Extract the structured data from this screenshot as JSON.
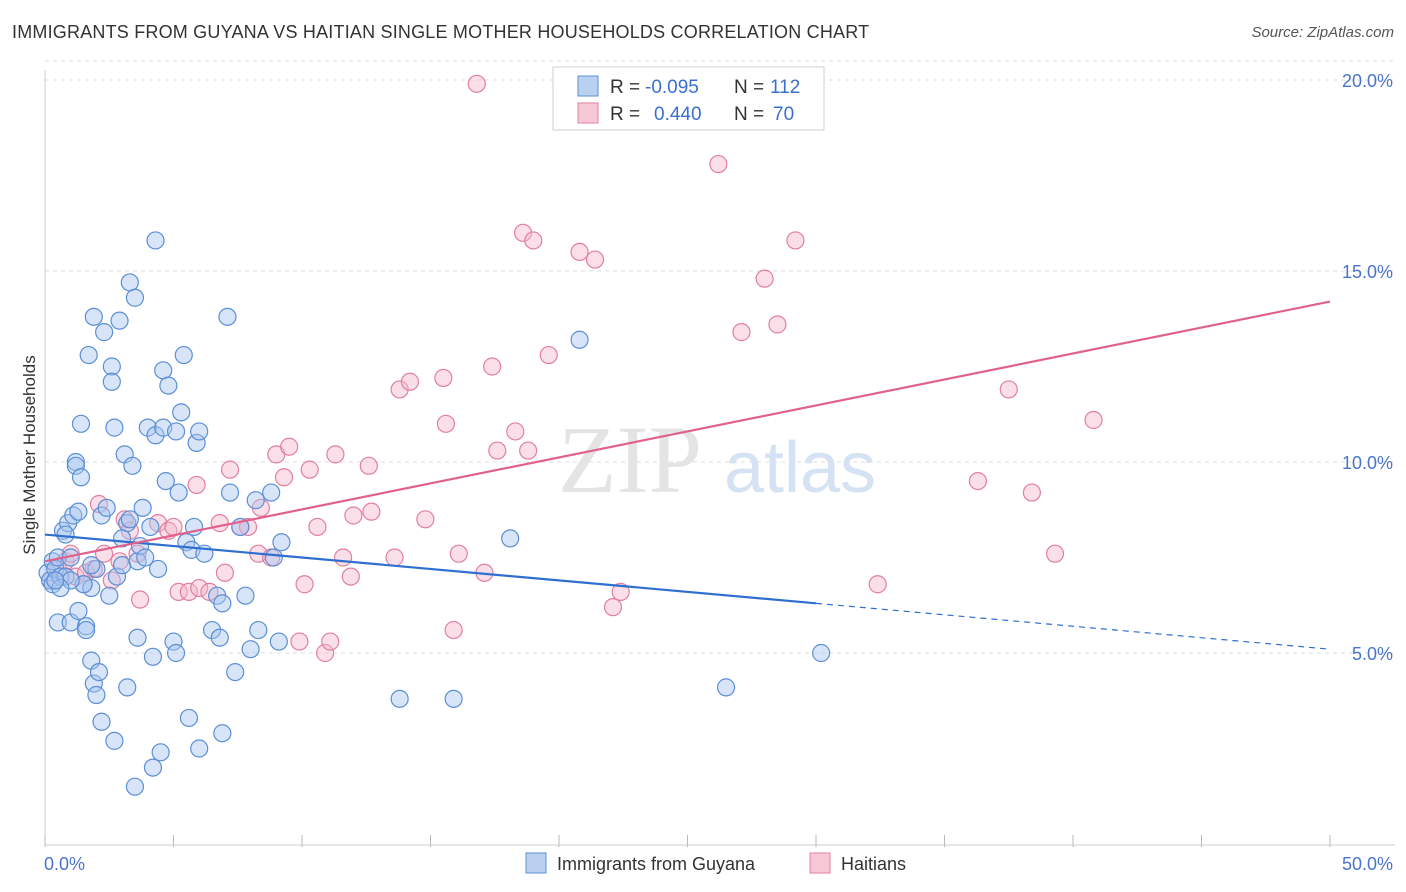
{
  "title": "IMMIGRANTS FROM GUYANA VS HAITIAN SINGLE MOTHER HOUSEHOLDS CORRELATION CHART",
  "source": "Source: ZipAtlas.com",
  "watermark": {
    "zip": "ZIP",
    "atlas": "atlas"
  },
  "legend": {
    "rows": [
      {
        "r_label": "R =",
        "r_value": "-0.095",
        "n_label": "N =",
        "n_value": "112"
      },
      {
        "r_label": "R =",
        "r_value": "0.440",
        "n_label": "N =",
        "n_value": "70"
      }
    ]
  },
  "bottom_legend": [
    "Immigrants from Guyana",
    "Haitians"
  ],
  "colors": {
    "blue_fill": "#a9c6ef",
    "blue_stroke": "#5b8fd6",
    "blue_line": "#2f6fd0",
    "pink_fill": "#f4b8cb",
    "pink_stroke": "#e27fa0",
    "pink_line": "#e0628c",
    "grid": "#dddddd",
    "tick_text": "#4a74c9"
  },
  "chart_data": {
    "type": "scatter",
    "title": "IMMIGRANTS FROM GUYANA VS HAITIAN SINGLE MOTHER HOUSEHOLDS CORRELATION CHART",
    "xlabel": "",
    "ylabel": "Single Mother Households",
    "xlim": [
      0,
      50
    ],
    "ylim": [
      0,
      20.5
    ],
    "x_tick_labels": [
      "0.0%",
      "50.0%"
    ],
    "y_ticks": [
      5,
      10,
      15,
      20
    ],
    "y_tick_labels": [
      "5.0%",
      "10.0%",
      "15.0%",
      "20.0%"
    ],
    "grid": true,
    "legend_position": "top-center",
    "series": [
      {
        "name": "Immigrants from Guyana",
        "r": -0.095,
        "n": 112,
        "trend": {
          "x": [
            0,
            30
          ],
          "y": [
            8.1,
            6.3
          ]
        },
        "trend_dashed": {
          "x": [
            30,
            50
          ],
          "y": [
            6.3,
            5.1
          ]
        },
        "points": [
          [
            0.1,
            7.1
          ],
          [
            0.2,
            6.9
          ],
          [
            0.3,
            7.4
          ],
          [
            0.3,
            6.8
          ],
          [
            0.4,
            7.2
          ],
          [
            0.5,
            7.5
          ],
          [
            0.5,
            5.8
          ],
          [
            0.6,
            7.0
          ],
          [
            0.7,
            8.2
          ],
          [
            0.8,
            7.0
          ],
          [
            0.9,
            8.4
          ],
          [
            1.0,
            5.8
          ],
          [
            1.0,
            7.5
          ],
          [
            1.1,
            8.6
          ],
          [
            1.2,
            10.0
          ],
          [
            1.2,
            9.9
          ],
          [
            1.3,
            8.7
          ],
          [
            1.3,
            6.1
          ],
          [
            1.4,
            11.0
          ],
          [
            1.4,
            9.6
          ],
          [
            1.5,
            6.8
          ],
          [
            1.6,
            5.7
          ],
          [
            1.6,
            5.6
          ],
          [
            1.7,
            12.8
          ],
          [
            1.8,
            4.8
          ],
          [
            1.8,
            6.7
          ],
          [
            1.9,
            13.8
          ],
          [
            1.9,
            4.2
          ],
          [
            2.0,
            7.2
          ],
          [
            2.0,
            3.9
          ],
          [
            2.1,
            4.5
          ],
          [
            2.2,
            3.2
          ],
          [
            2.2,
            8.6
          ],
          [
            2.3,
            13.4
          ],
          [
            2.4,
            8.8
          ],
          [
            2.6,
            12.5
          ],
          [
            2.6,
            12.1
          ],
          [
            2.7,
            10.9
          ],
          [
            2.7,
            2.7
          ],
          [
            2.8,
            7.0
          ],
          [
            2.9,
            13.7
          ],
          [
            3.0,
            7.3
          ],
          [
            3.1,
            10.2
          ],
          [
            3.2,
            8.4
          ],
          [
            3.2,
            4.1
          ],
          [
            3.3,
            8.5
          ],
          [
            3.3,
            14.7
          ],
          [
            3.4,
            9.9
          ],
          [
            3.5,
            14.3
          ],
          [
            3.6,
            7.4
          ],
          [
            3.6,
            5.4
          ],
          [
            3.7,
            7.8
          ],
          [
            3.8,
            8.8
          ],
          [
            3.9,
            7.5
          ],
          [
            4.0,
            10.9
          ],
          [
            4.1,
            8.3
          ],
          [
            4.2,
            4.9
          ],
          [
            4.2,
            2.0
          ],
          [
            4.3,
            10.7
          ],
          [
            4.3,
            15.8
          ],
          [
            4.5,
            2.4
          ],
          [
            4.6,
            12.4
          ],
          [
            4.6,
            10.9
          ],
          [
            4.7,
            9.5
          ],
          [
            4.8,
            12.0
          ],
          [
            5.0,
            5.3
          ],
          [
            5.1,
            10.8
          ],
          [
            5.1,
            5.0
          ],
          [
            5.2,
            9.2
          ],
          [
            5.3,
            11.3
          ],
          [
            5.4,
            12.8
          ],
          [
            5.5,
            7.9
          ],
          [
            5.6,
            3.3
          ],
          [
            5.7,
            7.7
          ],
          [
            5.8,
            8.3
          ],
          [
            5.9,
            10.5
          ],
          [
            6.0,
            10.8
          ],
          [
            6.0,
            2.5
          ],
          [
            6.2,
            7.6
          ],
          [
            6.5,
            5.6
          ],
          [
            6.7,
            6.5
          ],
          [
            6.8,
            5.4
          ],
          [
            6.9,
            6.3
          ],
          [
            6.9,
            2.9
          ],
          [
            7.1,
            13.8
          ],
          [
            7.2,
            9.2
          ],
          [
            7.4,
            4.5
          ],
          [
            7.6,
            8.3
          ],
          [
            7.8,
            6.5
          ],
          [
            8.0,
            5.1
          ],
          [
            8.2,
            9.0
          ],
          [
            8.3,
            5.6
          ],
          [
            8.8,
            9.2
          ],
          [
            8.9,
            7.5
          ],
          [
            9.1,
            5.3
          ],
          [
            9.2,
            7.9
          ],
          [
            13.8,
            3.8
          ],
          [
            15.9,
            3.8
          ],
          [
            18.1,
            8.0
          ],
          [
            20.8,
            13.2
          ],
          [
            26.5,
            4.1
          ],
          [
            30.2,
            5.0
          ],
          [
            1.5,
            6.8
          ],
          [
            0.8,
            8.1
          ],
          [
            2.5,
            6.5
          ],
          [
            3.0,
            8.0
          ],
          [
            1.0,
            6.9
          ],
          [
            0.6,
            6.7
          ],
          [
            4.4,
            7.2
          ],
          [
            1.8,
            7.3
          ],
          [
            0.4,
            6.9
          ],
          [
            3.5,
            1.5
          ]
        ]
      },
      {
        "name": "Haitians",
        "r": 0.44,
        "n": 70,
        "trend": {
          "x": [
            0,
            50
          ],
          "y": [
            7.4,
            14.2
          ]
        },
        "points": [
          [
            0.2,
            6.9
          ],
          [
            0.5,
            7.2
          ],
          [
            0.8,
            7.4
          ],
          [
            1.0,
            7.6
          ],
          [
            1.2,
            7.0
          ],
          [
            1.6,
            7.1
          ],
          [
            1.9,
            7.2
          ],
          [
            2.1,
            8.9
          ],
          [
            2.3,
            7.6
          ],
          [
            2.6,
            6.9
          ],
          [
            2.9,
            7.4
          ],
          [
            3.1,
            8.5
          ],
          [
            3.3,
            8.2
          ],
          [
            3.6,
            7.6
          ],
          [
            3.7,
            6.4
          ],
          [
            4.4,
            8.4
          ],
          [
            4.8,
            8.2
          ],
          [
            5.0,
            8.3
          ],
          [
            5.2,
            6.6
          ],
          [
            5.6,
            6.6
          ],
          [
            5.9,
            9.4
          ],
          [
            6.0,
            6.7
          ],
          [
            6.4,
            6.6
          ],
          [
            6.8,
            8.4
          ],
          [
            7.0,
            7.1
          ],
          [
            7.2,
            9.8
          ],
          [
            7.6,
            8.3
          ],
          [
            7.9,
            8.3
          ],
          [
            8.3,
            7.6
          ],
          [
            8.4,
            8.8
          ],
          [
            8.8,
            7.5
          ],
          [
            9.0,
            10.2
          ],
          [
            9.3,
            9.6
          ],
          [
            9.5,
            10.4
          ],
          [
            9.9,
            5.3
          ],
          [
            10.1,
            6.8
          ],
          [
            10.3,
            9.8
          ],
          [
            10.6,
            8.3
          ],
          [
            10.9,
            5.0
          ],
          [
            11.1,
            5.3
          ],
          [
            11.3,
            10.2
          ],
          [
            11.6,
            7.5
          ],
          [
            11.9,
            7.0
          ],
          [
            12.0,
            8.6
          ],
          [
            12.6,
            9.9
          ],
          [
            12.7,
            8.7
          ],
          [
            13.6,
            7.5
          ],
          [
            13.8,
            11.9
          ],
          [
            14.2,
            12.1
          ],
          [
            14.8,
            8.5
          ],
          [
            15.5,
            12.2
          ],
          [
            15.6,
            11.0
          ],
          [
            15.9,
            5.6
          ],
          [
            16.1,
            7.6
          ],
          [
            16.8,
            19.9
          ],
          [
            17.1,
            7.1
          ],
          [
            17.4,
            12.5
          ],
          [
            17.6,
            10.3
          ],
          [
            18.3,
            10.8
          ],
          [
            18.6,
            16.0
          ],
          [
            18.8,
            10.3
          ],
          [
            19.0,
            15.8
          ],
          [
            19.6,
            12.8
          ],
          [
            20.8,
            15.5
          ],
          [
            21.4,
            15.3
          ],
          [
            22.1,
            6.2
          ],
          [
            22.4,
            6.6
          ],
          [
            26.2,
            17.8
          ],
          [
            27.1,
            13.4
          ],
          [
            28.0,
            14.8
          ]
        ]
      }
    ]
  },
  "extra_pink_points": [
    [
      28.5,
      13.6
    ],
    [
      29.2,
      15.8
    ],
    [
      32.4,
      6.8
    ],
    [
      36.3,
      9.5
    ],
    [
      37.5,
      11.9
    ],
    [
      38.4,
      9.2
    ],
    [
      39.3,
      7.6
    ],
    [
      40.8,
      11.1
    ]
  ]
}
